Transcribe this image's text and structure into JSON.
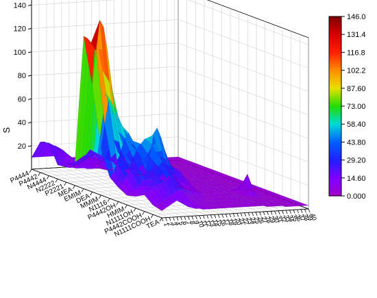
{
  "chart_data": {
    "type": "surface3d",
    "zlabel": "S",
    "zticks": [
      20,
      40,
      60,
      80,
      100,
      120,
      140
    ],
    "zlim": [
      0,
      146
    ],
    "cation_labels": [
      "P4444",
      "P4442",
      "N4444",
      "N2222",
      "P2221",
      "MEA",
      "EMIM",
      "DEA",
      "MMIM",
      "N1116",
      "P4442OH",
      "HMIM",
      "N1111OH",
      "P4442COOH",
      "N1111COOH",
      "TEA"
    ],
    "anion_labels": [
      "1",
      "2",
      "3",
      "4",
      "5",
      "6",
      "7",
      "8",
      "9",
      "10",
      "11",
      "12",
      "13",
      "14",
      "15",
      "16",
      "17",
      "18",
      "19",
      "20",
      "21",
      "22",
      "23",
      "24",
      "25",
      "26",
      "27",
      "28",
      "29",
      "30",
      "31",
      "32",
      "33",
      "34",
      "35",
      "36",
      "37",
      "38",
      "39",
      "40"
    ],
    "colorbar_ticks": [
      "146.0",
      "131.4",
      "116.8",
      "102.2",
      "87.60",
      "73.00",
      "58.40",
      "43.80",
      "29.20",
      "14.60",
      "0.000"
    ],
    "colorbar_range": [
      0,
      146
    ],
    "colorbar_colors": [
      "#7f0000",
      "#d40000",
      "#ff2000",
      "#ff8c00",
      "#e8e000",
      "#22dd00",
      "#00d8d8",
      "#0060ff",
      "#2020ff",
      "#8000ff",
      "#a000cc"
    ],
    "surface_z": [
      [
        10,
        10,
        10,
        10,
        10,
        10,
        10,
        10,
        9,
        8,
        8,
        8,
        8,
        8,
        8,
        8,
        7,
        6,
        6,
        5,
        5,
        5,
        5,
        5,
        5,
        5,
        5,
        5,
        5,
        5,
        4,
        4,
        4,
        3,
        3,
        3,
        3,
        3,
        3,
        3
      ],
      [
        26,
        26,
        24,
        22,
        22,
        20,
        18,
        15,
        12,
        10,
        9,
        9,
        9,
        9,
        8,
        8,
        7,
        7,
        6,
        6,
        5,
        5,
        5,
        5,
        5,
        5,
        5,
        5,
        4,
        4,
        4,
        4,
        4,
        3,
        3,
        3,
        3,
        3,
        3,
        3
      ],
      [
        28,
        26,
        24,
        20,
        18,
        16,
        14,
        12,
        10,
        9,
        8,
        8,
        8,
        8,
        8,
        8,
        7,
        7,
        6,
        6,
        5,
        5,
        5,
        5,
        5,
        5,
        5,
        5,
        4,
        4,
        4,
        4,
        4,
        3,
        3,
        3,
        3,
        3,
        3,
        3
      ],
      [
        12,
        11,
        10,
        9,
        9,
        8,
        8,
        8,
        7,
        7,
        7,
        7,
        7,
        7,
        7,
        7,
        6,
        6,
        6,
        5,
        5,
        5,
        5,
        5,
        5,
        5,
        5,
        5,
        4,
        4,
        4,
        4,
        4,
        3,
        3,
        3,
        3,
        3,
        3,
        3
      ],
      [
        16,
        15,
        14,
        14,
        16,
        18,
        20,
        22,
        20,
        15,
        10,
        8,
        8,
        8,
        7,
        7,
        6,
        6,
        6,
        5,
        5,
        5,
        5,
        5,
        5,
        5,
        5,
        5,
        4,
        4,
        4,
        4,
        4,
        3,
        3,
        3,
        3,
        3,
        3,
        3
      ],
      [
        20,
        22,
        24,
        26,
        30,
        28,
        26,
        24,
        22,
        20,
        18,
        15,
        12,
        10,
        8,
        7,
        6,
        6,
        6,
        5,
        5,
        5,
        5,
        5,
        5,
        5,
        5,
        5,
        4,
        4,
        4,
        4,
        4,
        3,
        3,
        3,
        3,
        3,
        3,
        3
      ],
      [
        130,
        128,
        124,
        120,
        118,
        100,
        80,
        60,
        40,
        30,
        25,
        20,
        18,
        15,
        12,
        10,
        8,
        7,
        6,
        5,
        5,
        5,
        5,
        5,
        5,
        5,
        5,
        5,
        4,
        4,
        4,
        4,
        4,
        3,
        3,
        3,
        3,
        3,
        3,
        3
      ],
      [
        90,
        120,
        146,
        140,
        120,
        90,
        70,
        50,
        40,
        30,
        25,
        20,
        18,
        15,
        12,
        10,
        8,
        7,
        6,
        5,
        5,
        5,
        5,
        5,
        5,
        5,
        5,
        5,
        4,
        4,
        4,
        4,
        4,
        3,
        3,
        3,
        3,
        3,
        3,
        3
      ],
      [
        40,
        60,
        80,
        72,
        65,
        60,
        55,
        45,
        42,
        40,
        35,
        30,
        25,
        20,
        15,
        12,
        10,
        8,
        7,
        6,
        6,
        5,
        5,
        5,
        5,
        5,
        5,
        5,
        4,
        4,
        4,
        4,
        4,
        3,
        3,
        3,
        3,
        3,
        3,
        3
      ],
      [
        18,
        22,
        30,
        40,
        50,
        55,
        48,
        40,
        35,
        30,
        26,
        22,
        18,
        15,
        12,
        10,
        8,
        7,
        6,
        6,
        5,
        5,
        5,
        5,
        5,
        5,
        5,
        5,
        4,
        4,
        4,
        4,
        4,
        3,
        3,
        3,
        3,
        3,
        3,
        3
      ],
      [
        12,
        15,
        20,
        28,
        36,
        44,
        48,
        52,
        50,
        46,
        40,
        36,
        30,
        25,
        20,
        15,
        12,
        9,
        7,
        6,
        5,
        5,
        5,
        5,
        5,
        5,
        5,
        5,
        4,
        4,
        4,
        4,
        4,
        3,
        3,
        3,
        3,
        3,
        3,
        3
      ],
      [
        8,
        10,
        12,
        15,
        20,
        28,
        40,
        58,
        64,
        56,
        45,
        36,
        30,
        28,
        26,
        22,
        18,
        14,
        10,
        8,
        6,
        5,
        5,
        5,
        5,
        5,
        5,
        5,
        4,
        4,
        8,
        14,
        20,
        10,
        4,
        3,
        3,
        3,
        3,
        3
      ],
      [
        10,
        12,
        14,
        18,
        24,
        30,
        34,
        38,
        34,
        30,
        26,
        22,
        18,
        15,
        12,
        10,
        8,
        7,
        6,
        5,
        5,
        5,
        5,
        5,
        5,
        5,
        5,
        5,
        4,
        4,
        4,
        4,
        4,
        3,
        3,
        3,
        3,
        3,
        3,
        3
      ],
      [
        14,
        16,
        18,
        20,
        22,
        24,
        26,
        28,
        26,
        22,
        18,
        14,
        12,
        10,
        8,
        7,
        6,
        6,
        5,
        5,
        5,
        5,
        5,
        5,
        5,
        5,
        5,
        5,
        4,
        4,
        4,
        4,
        4,
        3,
        3,
        3,
        3,
        3,
        3,
        3
      ],
      [
        8,
        9,
        10,
        12,
        14,
        16,
        18,
        20,
        18,
        15,
        12,
        10,
        8,
        7,
        6,
        6,
        5,
        5,
        5,
        5,
        5,
        5,
        5,
        5,
        5,
        5,
        5,
        5,
        4,
        4,
        4,
        4,
        4,
        3,
        3,
        3,
        3,
        3,
        3,
        3
      ],
      [
        6,
        8,
        10,
        12,
        14,
        12,
        10,
        8,
        7,
        6,
        6,
        5,
        5,
        5,
        5,
        5,
        5,
        5,
        5,
        5,
        5,
        5,
        5,
        5,
        5,
        5,
        5,
        5,
        4,
        4,
        4,
        4,
        4,
        3,
        3,
        3,
        3,
        3,
        3,
        3
      ]
    ]
  }
}
